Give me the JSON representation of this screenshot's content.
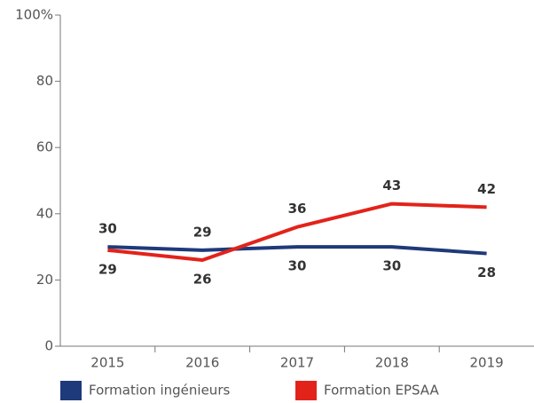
{
  "chart_data": {
    "type": "line",
    "categories": [
      "2015",
      "2016",
      "2017",
      "2018",
      "2019"
    ],
    "series": [
      {
        "name": "Formation ingénieurs",
        "color": "#1f3a7a",
        "values": [
          30,
          29,
          30,
          30,
          28
        ]
      },
      {
        "name": "Formation EPSAA",
        "color": "#e2231a",
        "values": [
          29,
          26,
          36,
          43,
          42
        ]
      }
    ],
    "ylim": [
      0,
      100
    ],
    "yticks": [
      0,
      20,
      40,
      60,
      80,
      {
        "value": 100,
        "label": "100%"
      }
    ],
    "legend": "bottom"
  }
}
